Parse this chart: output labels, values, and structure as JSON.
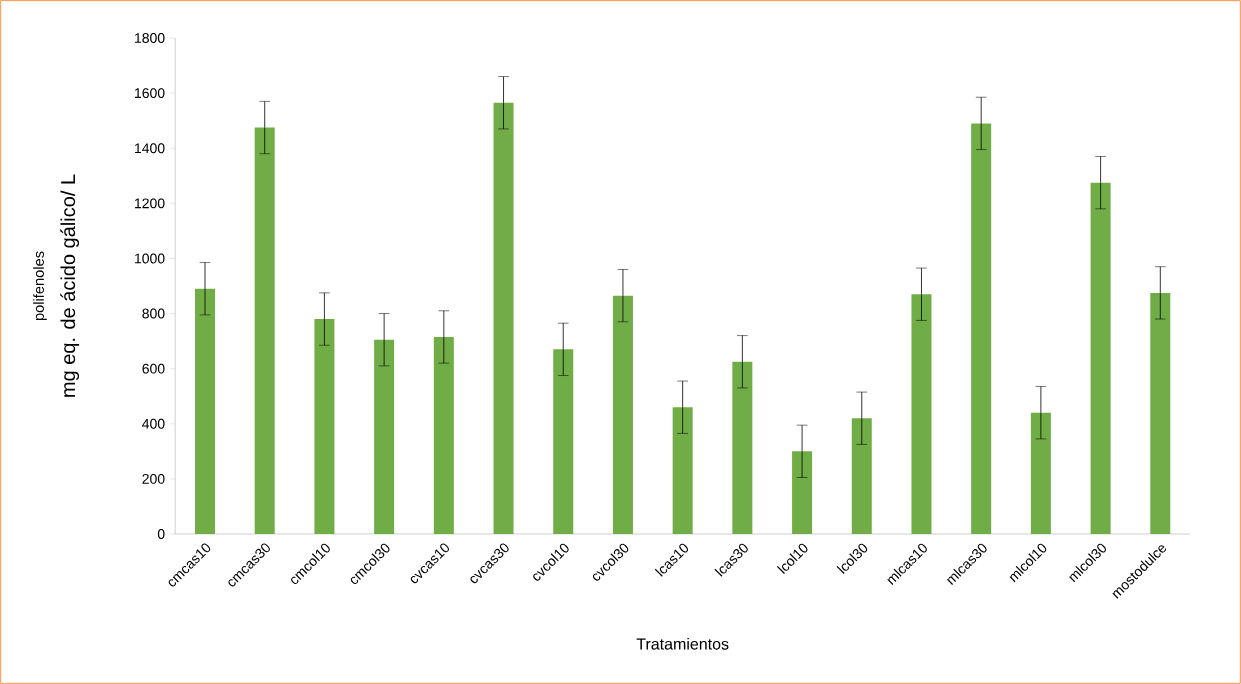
{
  "chart_data": {
    "type": "bar",
    "categories": [
      "cmcas10",
      "cmcas30",
      "cmcol10",
      "cmcol30",
      "cvcas10",
      "cvcas30",
      "cvcol10",
      "cvcol30",
      "lcas10",
      "lcas30",
      "lcol10",
      "lcol30",
      "mlcas10",
      "mlcas30",
      "mlcol10",
      "mlcol30",
      "mostodulce"
    ],
    "values": [
      890,
      1475,
      780,
      705,
      715,
      1565,
      670,
      865,
      460,
      625,
      300,
      420,
      870,
      1490,
      440,
      1275,
      875
    ],
    "errors": [
      95,
      95,
      95,
      95,
      95,
      95,
      95,
      95,
      95,
      95,
      95,
      95,
      95,
      95,
      95,
      95,
      95
    ],
    "color": "#70ad47",
    "ylim": [
      0,
      1800
    ],
    "yticks": [
      0,
      200,
      400,
      600,
      800,
      1000,
      1200,
      1400,
      1600,
      1800
    ],
    "xlabel": "Tratamientos",
    "ylabel": "mg eq. de ácido gálico/ L",
    "annotations": [
      "polifenoles"
    ]
  }
}
